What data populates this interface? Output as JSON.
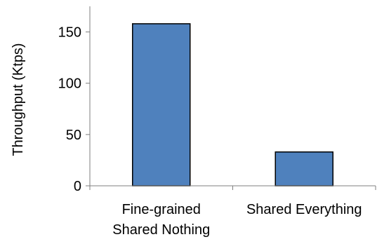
{
  "chart_data": {
    "type": "bar",
    "categories": [
      [
        "Fine-grained",
        "Shared Nothing"
      ],
      [
        "Shared Everything"
      ]
    ],
    "values": [
      158,
      33
    ],
    "ylabel": "Throughput (Ktps)",
    "ylim": [
      0,
      175
    ],
    "yticks": [
      0,
      50,
      100,
      150
    ],
    "grid": false,
    "bar_color": "#4f81bd",
    "bar_edge_color": "#000000"
  }
}
